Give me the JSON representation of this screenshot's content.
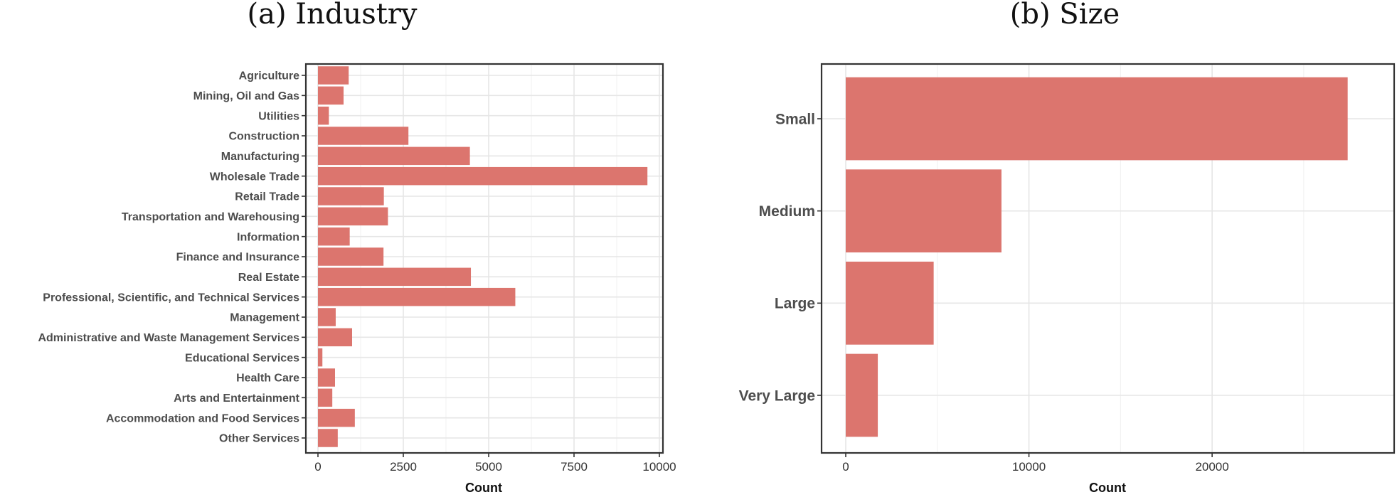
{
  "chart_data": [
    {
      "type": "bar",
      "orientation": "horizontal",
      "title": "(a) Industry",
      "xlabel": "Count",
      "ylabel": "",
      "xlim": [
        0,
        10000
      ],
      "xticks": [
        0,
        2500,
        5000,
        7500,
        10000
      ],
      "grid": true,
      "bar_color": "#dc756e",
      "categories": [
        "Agriculture",
        "Mining, Oil and Gas",
        "Utilities",
        "Construction",
        "Manufacturing",
        "Wholesale Trade",
        "Retail Trade",
        "Transportation and Warehousing",
        "Information",
        "Finance and Insurance",
        "Real Estate",
        "Professional, Scientific, and Technical Services",
        "Management",
        "Administrative and Waste Management Services",
        "Educational Services",
        "Health Care",
        "Arts and Entertainment",
        "Accommodation and Food Services",
        "Other Services"
      ],
      "values": [
        900,
        750,
        320,
        2650,
        4450,
        9650,
        1930,
        2050,
        930,
        1920,
        4480,
        5780,
        520,
        1000,
        130,
        500,
        420,
        1080,
        580
      ]
    },
    {
      "type": "bar",
      "orientation": "horizontal",
      "title": "(b) Size",
      "xlabel": "Count",
      "ylabel": "",
      "xlim": [
        0,
        28500
      ],
      "xticks": [
        0,
        10000,
        20000
      ],
      "grid": true,
      "bar_color": "#dc756e",
      "categories": [
        "Small",
        "Medium",
        "Large",
        "Very Large"
      ],
      "values": [
        27400,
        8500,
        4800,
        1750
      ]
    }
  ]
}
